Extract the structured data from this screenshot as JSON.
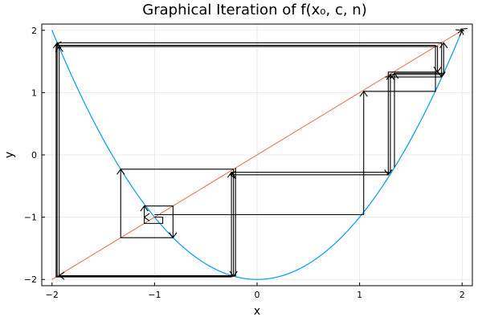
{
  "chart_data": {
    "type": "line",
    "title": "Graphical Iteration of f(x₀, c, n)",
    "xlabel": "x",
    "ylabel": "y",
    "xlim": [
      -2.1,
      2.1
    ],
    "ylim": [
      -2.1,
      2.1
    ],
    "xticks": [
      -2,
      -1,
      0,
      1,
      2
    ],
    "yticks": [
      -2,
      -1,
      0,
      1,
      2
    ],
    "xtick_labels": [
      "−2",
      "−1",
      "0",
      "1",
      "2"
    ],
    "ytick_labels": [
      "−2",
      "−1",
      "0",
      "1",
      "2"
    ],
    "grid": true,
    "legend": "none",
    "function": {
      "expression": "x^2 - 2",
      "x_range": [
        -2,
        2
      ],
      "color": "#009AFA"
    },
    "identity_line": {
      "x_range": [
        -2,
        2
      ],
      "color": "#E26F46"
    },
    "iteration": {
      "color": "#000000",
      "points": [
        [
          -1.0,
          -1.0
        ],
        [
          -1.0,
          -1.0
        ],
        [
          -1.0,
          -1.0
        ],
        [
          -0.92,
          -1.0
        ],
        [
          -0.92,
          -1.1
        ],
        [
          -1.1,
          -1.1
        ],
        [
          -1.1,
          -0.82
        ],
        [
          -0.82,
          -0.82
        ],
        [
          -0.82,
          -1.33
        ],
        [
          -1.33,
          -1.33
        ],
        [
          -1.33,
          -0.23
        ],
        [
          -0.23,
          -0.23
        ],
        [
          -0.23,
          -1.95
        ],
        [
          -1.95,
          -1.95
        ],
        [
          -1.95,
          1.8
        ],
        [
          1.8,
          1.8
        ],
        [
          1.8,
          1.25
        ],
        [
          1.25,
          1.25
        ]
      ],
      "extra_paths": [
        [
          [
            -1.0,
            -0.96
          ],
          [
            1.04,
            -0.96
          ],
          [
            1.04,
            1.02
          ],
          [
            1.74,
            1.02
          ],
          [
            1.74,
            1.76
          ],
          [
            -1.96,
            1.76
          ],
          [
            -1.96,
            -1.96
          ],
          [
            -0.25,
            -1.96
          ],
          [
            -0.25,
            -0.28
          ],
          [
            1.3,
            -0.28
          ],
          [
            1.3,
            1.29
          ],
          [
            1.82,
            1.29
          ],
          [
            1.82,
            1.8
          ]
        ],
        [
          [
            -0.21,
            -0.21
          ],
          [
            -0.21,
            -1.94
          ],
          [
            -1.93,
            -1.94
          ],
          [
            -1.93,
            1.74
          ],
          [
            1.76,
            1.74
          ],
          [
            1.76,
            1.33
          ],
          [
            1.28,
            1.33
          ],
          [
            1.28,
            -0.32
          ],
          [
            -0.26,
            -0.32
          ]
        ],
        [
          [
            1.34,
            -0.2
          ],
          [
            1.34,
            1.31
          ],
          [
            1.82,
            1.31
          ],
          [
            1.82,
            1.3
          ]
        ],
        [
          [
            1.96,
            1.96
          ],
          [
            2.0,
            2.0
          ],
          [
            2.02,
            1.99
          ],
          [
            1.99,
            2.02
          ]
        ]
      ],
      "arrows": [
        [
          [
            -0.92,
            -1.0
          ],
          [
            -1.1,
            -1.0
          ]
        ],
        [
          [
            -1.1,
            -1.1
          ],
          [
            -1.1,
            -0.82
          ]
        ],
        [
          [
            -0.82,
            -0.82
          ],
          [
            -0.82,
            -1.33
          ]
        ],
        [
          [
            -1.33,
            -1.33
          ],
          [
            -1.33,
            -0.23
          ]
        ],
        [
          [
            -0.23,
            -0.23
          ],
          [
            -0.23,
            -1.95
          ]
        ],
        [
          [
            -1.95,
            -1.95
          ],
          [
            -1.95,
            1.8
          ]
        ],
        [
          [
            1.8,
            1.8
          ],
          [
            1.8,
            1.25
          ]
        ],
        [
          [
            1.04,
            -0.96
          ],
          [
            1.04,
            1.02
          ]
        ],
        [
          [
            1.74,
            1.76
          ],
          [
            -1.96,
            1.76
          ]
        ],
        [
          [
            -0.25,
            -1.96
          ],
          [
            -0.25,
            -0.28
          ]
        ],
        [
          [
            1.3,
            -0.28
          ],
          [
            1.3,
            1.29
          ]
        ],
        [
          [
            1.82,
            1.29
          ],
          [
            1.82,
            1.8
          ]
        ],
        [
          [
            -0.21,
            -1.94
          ],
          [
            -1.93,
            -1.94
          ]
        ],
        [
          [
            1.28,
            1.33
          ],
          [
            1.28,
            -0.32
          ]
        ],
        [
          [
            1.28,
            -0.32
          ],
          [
            -0.26,
            -0.32
          ]
        ],
        [
          [
            1.76,
            1.74
          ],
          [
            1.76,
            1.33
          ]
        ],
        [
          [
            -1.93,
            -1.94
          ],
          [
            -1.93,
            1.74
          ]
        ],
        [
          [
            1.34,
            -0.2
          ],
          [
            1.34,
            1.31
          ]
        ],
        [
          [
            1.96,
            1.96
          ],
          [
            2.0,
            2.0
          ]
        ],
        [
          [
            2.02,
            1.99
          ],
          [
            1.99,
            2.02
          ]
        ]
      ]
    }
  }
}
